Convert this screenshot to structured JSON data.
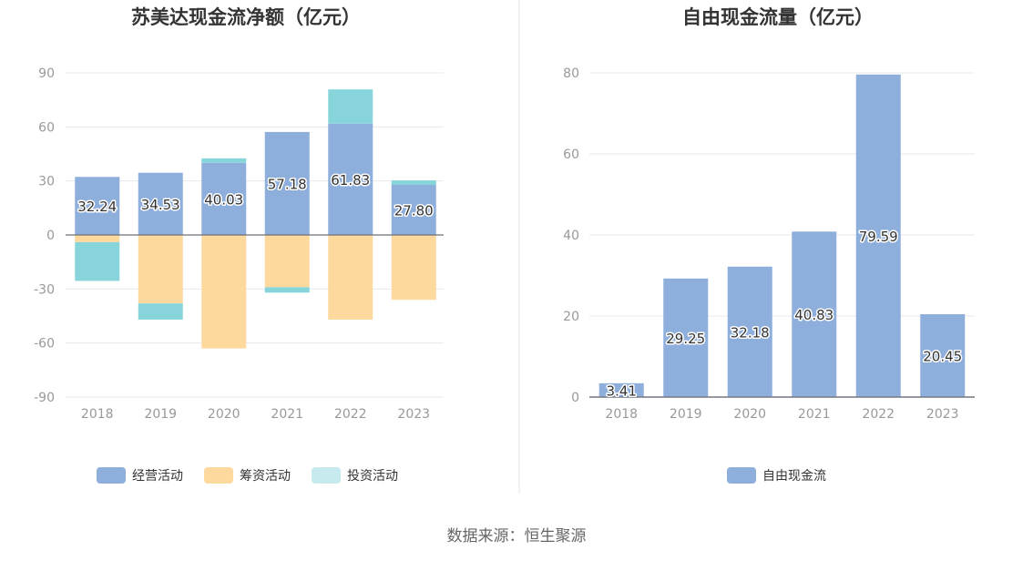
{
  "source": "数据来源：恒生聚源",
  "chart_data": [
    {
      "type": "bar",
      "stacked": true,
      "title": "苏美达现金流净额（亿元）",
      "categories": [
        "2018",
        "2019",
        "2020",
        "2021",
        "2022",
        "2023"
      ],
      "ylim": [
        -90,
        90
      ],
      "yticks": [
        90,
        60,
        30,
        0,
        -30,
        -60,
        -90
      ],
      "grid": true,
      "legend_position": "bottom",
      "series": [
        {
          "name": "经营活动",
          "color": "#8eaedc",
          "values": [
            32.24,
            34.53,
            40.03,
            57.18,
            61.83,
            27.8
          ],
          "labels": [
            "32.24",
            "34.53",
            "40.03",
            "57.18",
            "61.83",
            "27.80"
          ]
        },
        {
          "name": "筹资活动",
          "color": "#fed99d",
          "values": [
            -4.0,
            -38.0,
            -63.0,
            -29.0,
            -47.0,
            -36.0
          ]
        },
        {
          "name": "投资活动",
          "color": "#87d5da",
          "legend_color": "#c6eaee",
          "values": [
            -21.5,
            -9.0,
            2.5,
            -3.0,
            19.0,
            2.5
          ]
        }
      ]
    },
    {
      "type": "bar",
      "title": "自由现金流量（亿元）",
      "categories": [
        "2018",
        "2019",
        "2020",
        "2021",
        "2022",
        "2023"
      ],
      "ylim": [
        0,
        80
      ],
      "yticks": [
        80,
        60,
        40,
        20,
        0
      ],
      "grid": true,
      "legend_position": "bottom",
      "series": [
        {
          "name": "自由现金流",
          "color": "#8eaedc",
          "values": [
            3.41,
            29.25,
            32.18,
            40.83,
            79.59,
            20.45
          ],
          "labels": [
            "3.41",
            "29.25",
            "32.18",
            "40.83",
            "79.59",
            "20.45"
          ]
        }
      ]
    }
  ]
}
